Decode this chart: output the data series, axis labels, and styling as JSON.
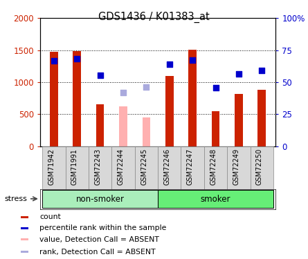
{
  "title": "GDS1436 / K01383_at",
  "samples": [
    "GSM71942",
    "GSM71991",
    "GSM72243",
    "GSM72244",
    "GSM72245",
    "GSM72246",
    "GSM72247",
    "GSM72248",
    "GSM72249",
    "GSM72250"
  ],
  "count_values": [
    1470,
    1490,
    660,
    null,
    null,
    1100,
    1510,
    550,
    820,
    880
  ],
  "count_absent": [
    null,
    null,
    null,
    620,
    450,
    null,
    null,
    null,
    null,
    null
  ],
  "rank_values": [
    1340,
    1370,
    1110,
    null,
    null,
    1280,
    1350,
    910,
    1130,
    1180
  ],
  "rank_absent": [
    null,
    null,
    null,
    840,
    930,
    null,
    null,
    null,
    null,
    null
  ],
  "count_color": "#cc2200",
  "count_absent_color": "#ffb0b0",
  "rank_color": "#0000cc",
  "rank_absent_color": "#aaaadd",
  "ylim_left": [
    0,
    2000
  ],
  "ylim_right": [
    0,
    100
  ],
  "yticks_left": [
    0,
    500,
    1000,
    1500,
    2000
  ],
  "yticks_right": [
    0,
    25,
    50,
    75,
    100
  ],
  "yticklabels_left": [
    "0",
    "500",
    "1000",
    "1500",
    "2000"
  ],
  "yticklabels_right": [
    "0",
    "25",
    "50",
    "75",
    "100%"
  ],
  "group_labels": [
    "non-smoker",
    "smoker"
  ],
  "nonsmoker_color": "#aaeebb",
  "smoker_color": "#66ee77",
  "stress_label": "stress",
  "bar_width": 0.35,
  "legend_items": [
    {
      "label": "count",
      "color": "#cc2200"
    },
    {
      "label": "percentile rank within the sample",
      "color": "#0000cc"
    },
    {
      "label": "value, Detection Call = ABSENT",
      "color": "#ffb0b0"
    },
    {
      "label": "rank, Detection Call = ABSENT",
      "color": "#aaaadd"
    }
  ]
}
